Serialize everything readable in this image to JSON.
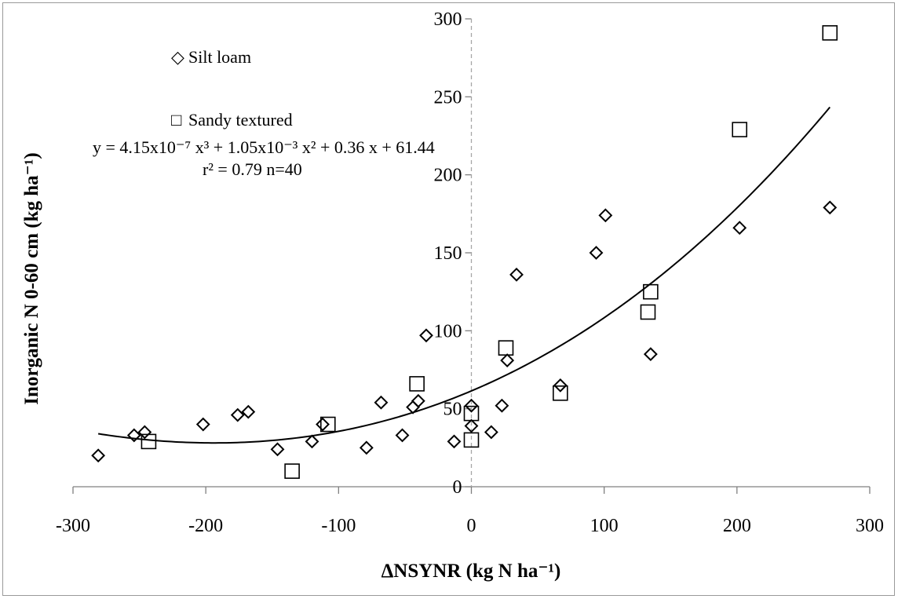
{
  "chart_data": {
    "type": "scatter",
    "xlabel": "ΔNSYNR (kg N ha⁻¹)",
    "ylabel": "Inorganic N 0-60 cm (kg ha⁻¹)",
    "xlim": [
      -300,
      300
    ],
    "ylim": [
      0,
      300
    ],
    "x_ticks": [
      -300,
      -200,
      -100,
      0,
      100,
      200,
      300
    ],
    "y_ticks": [
      0,
      50,
      100,
      150,
      200,
      250,
      300
    ],
    "x_tick_labels": [
      "-300",
      "-200",
      "-100",
      "0",
      "100",
      "200",
      "300"
    ],
    "y_tick_labels": [
      "0",
      "50",
      "100",
      "150",
      "200",
      "250",
      "300"
    ],
    "grid": false,
    "legend_position": "top-left",
    "series": [
      {
        "name": "Silt loam",
        "marker": "diamond",
        "points": [
          [
            -281,
            20
          ],
          [
            -254,
            33
          ],
          [
            -246,
            35
          ],
          [
            -202,
            40
          ],
          [
            -176,
            46
          ],
          [
            -168,
            48
          ],
          [
            -146,
            24
          ],
          [
            -120,
            29
          ],
          [
            -112,
            40
          ],
          [
            -79,
            25
          ],
          [
            -68,
            54
          ],
          [
            -52,
            33
          ],
          [
            -44,
            51
          ],
          [
            -40,
            55
          ],
          [
            -34,
            97
          ],
          [
            -13,
            29
          ],
          [
            0,
            52
          ],
          [
            0,
            39
          ],
          [
            15,
            35
          ],
          [
            23,
            52
          ],
          [
            27,
            81
          ],
          [
            34,
            136
          ],
          [
            67,
            65
          ],
          [
            94,
            150
          ],
          [
            101,
            174
          ],
          [
            135,
            85
          ],
          [
            202,
            166
          ],
          [
            270,
            179
          ]
        ]
      },
      {
        "name": "Sandy textured",
        "marker": "square",
        "points": [
          [
            -243,
            29
          ],
          [
            -135,
            10
          ],
          [
            -108,
            40
          ],
          [
            -41,
            66
          ],
          [
            0,
            47
          ],
          [
            0,
            30
          ],
          [
            26,
            89
          ],
          [
            67,
            60
          ],
          [
            133,
            112
          ],
          [
            135,
            125
          ],
          [
            202,
            229
          ],
          [
            270,
            291
          ]
        ]
      }
    ],
    "fit": {
      "type": "cubic",
      "coefficients": {
        "a3": 4.15e-07,
        "a2": 0.00105,
        "a1": 0.36,
        "a0": 61.44
      },
      "x_range": [
        -281,
        270
      ]
    },
    "equation_line1": "y = 4.15x10⁻⁷ x³ + 1.05x10⁻³ x² + 0.36 x + 61.44",
    "equation_line2": "r² = 0.79 n=40",
    "colors": {
      "marker": "#000000",
      "curve": "#000000",
      "zero_line": "#a6a6a6",
      "axis": "#808080",
      "frame": "#9a9a9a"
    }
  }
}
